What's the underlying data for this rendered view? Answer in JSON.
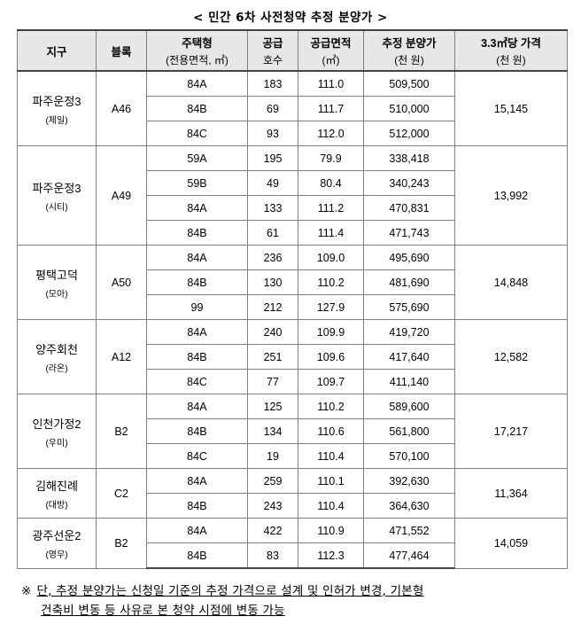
{
  "title": "< 민간 6차 사전청약 추정 분양가 >",
  "headers": {
    "district": "지구",
    "block": "블록",
    "housing_type": "주택형",
    "housing_type_sub": "(전용면적, ㎡)",
    "supply_units": "공급",
    "supply_units_sub": "호수",
    "supply_area": "공급면적",
    "supply_area_sub": "(㎡)",
    "est_price": "추정 분양가",
    "est_price_sub": "(천 원)",
    "price_per_pyeong": "3.3㎡당 가격",
    "price_per_pyeong_sub": "(천 원)"
  },
  "groups": [
    {
      "district": "파주운정3",
      "brand": "(제일)",
      "block": "A46",
      "price_per_pyeong": "15,145",
      "rows": [
        {
          "type": "84A",
          "units": "183",
          "area": "111.0",
          "price": "509,500"
        },
        {
          "type": "84B",
          "units": "69",
          "area": "111.7",
          "price": "510,000"
        },
        {
          "type": "84C",
          "units": "93",
          "area": "112.0",
          "price": "512,000"
        }
      ]
    },
    {
      "district": "파주운정3",
      "brand": "(시티)",
      "block": "A49",
      "price_per_pyeong": "13,992",
      "rows": [
        {
          "type": "59A",
          "units": "195",
          "area": "79.9",
          "price": "338,418"
        },
        {
          "type": "59B",
          "units": "49",
          "area": "80.4",
          "price": "340,243"
        },
        {
          "type": "84A",
          "units": "133",
          "area": "111.2",
          "price": "470,831"
        },
        {
          "type": "84B",
          "units": "61",
          "area": "111.4",
          "price": "471,743"
        }
      ]
    },
    {
      "district": "평택고덕",
      "brand": "(모아)",
      "block": "A50",
      "price_per_pyeong": "14,848",
      "rows": [
        {
          "type": "84A",
          "units": "236",
          "area": "109.0",
          "price": "495,690"
        },
        {
          "type": "84B",
          "units": "130",
          "area": "110.2",
          "price": "481,690"
        },
        {
          "type": "99",
          "units": "212",
          "area": "127.9",
          "price": "575,690"
        }
      ]
    },
    {
      "district": "양주회천",
      "brand": "(라온)",
      "block": "A12",
      "price_per_pyeong": "12,582",
      "rows": [
        {
          "type": "84A",
          "units": "240",
          "area": "109.9",
          "price": "419,720"
        },
        {
          "type": "84B",
          "units": "251",
          "area": "109.6",
          "price": "417,640"
        },
        {
          "type": "84C",
          "units": "77",
          "area": "109.7",
          "price": "411,140"
        }
      ]
    },
    {
      "district": "인천가정2",
      "brand": "(우미)",
      "block": "B2",
      "price_per_pyeong": "17,217",
      "rows": [
        {
          "type": "84A",
          "units": "125",
          "area": "110.2",
          "price": "589,600"
        },
        {
          "type": "84B",
          "units": "134",
          "area": "110.6",
          "price": "561,800"
        },
        {
          "type": "84C",
          "units": "19",
          "area": "110.4",
          "price": "570,100"
        }
      ]
    },
    {
      "district": "김해진례",
      "brand": "(대방)",
      "block": "C2",
      "price_per_pyeong": "11,364",
      "rows": [
        {
          "type": "84A",
          "units": "259",
          "area": "110.1",
          "price": "392,630"
        },
        {
          "type": "84B",
          "units": "243",
          "area": "110.4",
          "price": "364,630"
        }
      ]
    },
    {
      "district": "광주선운2",
      "brand": "(영무)",
      "block": "B2",
      "price_per_pyeong": "14,059",
      "rows": [
        {
          "type": "84A",
          "units": "422",
          "area": "110.9",
          "price": "471,552"
        },
        {
          "type": "84B",
          "units": "83",
          "area": "112.3",
          "price": "477,464"
        }
      ]
    }
  ],
  "note": {
    "mark": "※",
    "line1": "단, 추정 분양가는 신청일 기준의 추정 가격으로 설계 및 인허가 변경, 기본형",
    "line2": "건축비 변동 등 사유로 본 청약 시점에 변동 가능"
  }
}
